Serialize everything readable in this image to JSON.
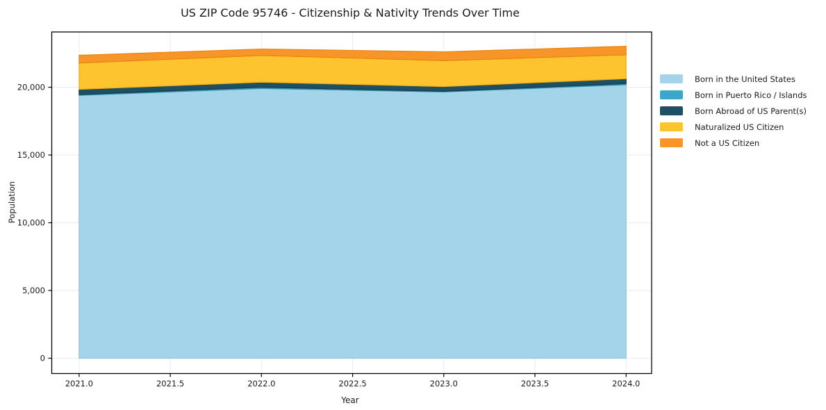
{
  "chart_data": {
    "type": "area",
    "stacked": true,
    "title": "US ZIP Code 95746 - Citizenship & Nativity Trends Over Time",
    "xlabel": "Year",
    "ylabel": "Population",
    "x": [
      2021,
      2022,
      2023,
      2024
    ],
    "series": [
      {
        "name": "Born in the United States",
        "color": "#A4D4EA",
        "edge": "#8FC3DC",
        "values": [
          19400,
          19910,
          19655,
          20185
        ]
      },
      {
        "name": "Born in Puerto Rico / Islands",
        "color": "#3DA8C6",
        "edge": "#2E93B0",
        "values": [
          60,
          90,
          45,
          85
        ]
      },
      {
        "name": "Born Abroad of US Parent(s)",
        "color": "#1F4F62",
        "edge": "#153B4B",
        "values": [
          385,
          375,
          350,
          360
        ]
      },
      {
        "name": "Naturalized US Citizen",
        "color": "#FDC42F",
        "edge": "#F2A916",
        "values": [
          1945,
          1970,
          1915,
          1765
        ]
      },
      {
        "name": "Not a US Citizen",
        "color": "#F79528",
        "edge": "#E8830F",
        "values": [
          570,
          475,
          650,
          630
        ]
      }
    ],
    "totals": [
      22360,
      22820,
      22615,
      23025
    ],
    "x_ticks": {
      "values": [
        2021.0,
        2021.5,
        2022.0,
        2022.5,
        2023.0,
        2023.5,
        2024.0
      ],
      "labels": [
        "2021.0",
        "2021.5",
        "2022.0",
        "2022.5",
        "2023.0",
        "2023.5",
        "2024.0"
      ]
    },
    "y_ticks": {
      "values": [
        0,
        5000,
        10000,
        15000,
        20000
      ],
      "labels": [
        "0",
        "5,000",
        "10,000",
        "15,000",
        "20,000"
      ]
    },
    "xlim": [
      2020.85,
      2024.14
    ],
    "ylim": [
      -1130,
      24080
    ],
    "grid": true,
    "legend_position": "outside-right"
  },
  "colors": {
    "background": "#FFFFFF",
    "grid": "#EBEBEB",
    "spine": "#000000",
    "text": "#1a1a1a"
  }
}
